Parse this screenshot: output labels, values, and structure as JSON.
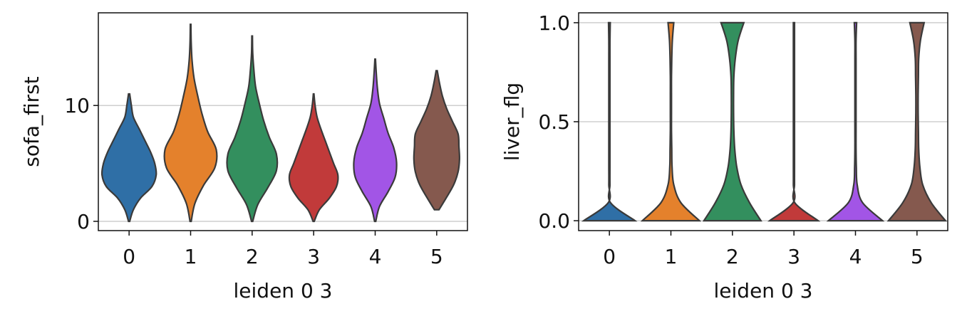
{
  "chart_data": [
    {
      "type": "violin",
      "xlabel": "leiden 0 3",
      "ylabel": "sofa_first",
      "categories": [
        "0",
        "1",
        "2",
        "3",
        "4",
        "5"
      ],
      "ylim": [
        -0.8,
        18
      ],
      "yticks": [
        0,
        10
      ],
      "grid": true,
      "violins": [
        {
          "color": "#2f6fa6",
          "min": 0,
          "max": 11,
          "profile": [
            0.02,
            0.15,
            0.4,
            0.8,
            0.95,
            0.9,
            0.75,
            0.55,
            0.35,
            0.15,
            0.08,
            0.02
          ]
        },
        {
          "color": "#e4812c",
          "min": 0,
          "max": 17,
          "profile": [
            0.02,
            0.15,
            0.45,
            0.85,
            0.9,
            0.6,
            0.4,
            0.25,
            0.12,
            0.05,
            0.02,
            0.01
          ]
        },
        {
          "color": "#338f5e",
          "min": 0,
          "max": 16,
          "profile": [
            0.02,
            0.2,
            0.55,
            0.85,
            0.85,
            0.6,
            0.4,
            0.25,
            0.12,
            0.06,
            0.02,
            0.01
          ]
        },
        {
          "color": "#c13a3a",
          "min": 0,
          "max": 11,
          "profile": [
            0.02,
            0.2,
            0.55,
            0.8,
            0.85,
            0.7,
            0.55,
            0.4,
            0.25,
            0.12,
            0.05,
            0.01
          ]
        },
        {
          "color": "#a255e6",
          "min": 0,
          "max": 14,
          "profile": [
            0.02,
            0.15,
            0.45,
            0.7,
            0.75,
            0.65,
            0.45,
            0.3,
            0.15,
            0.08,
            0.04,
            0.01
          ]
        },
        {
          "color": "#85594e",
          "min": 1,
          "max": 13,
          "profile": [
            0.08,
            0.35,
            0.6,
            0.75,
            0.8,
            0.78,
            0.75,
            0.55,
            0.35,
            0.2,
            0.1,
            0.02
          ]
        }
      ]
    },
    {
      "type": "violin",
      "xlabel": "leiden 0 3",
      "ylabel": "liver_flg",
      "categories": [
        "0",
        "1",
        "2",
        "3",
        "4",
        "5"
      ],
      "ylim": [
        -0.05,
        1.05
      ],
      "yticks": [
        {
          "value": 0,
          "label": "0.0"
        },
        0.5,
        {
          "value": 1,
          "label": "1.0"
        }
      ],
      "grid": true,
      "violins": [
        {
          "color": "#2f6fa6",
          "min": 0,
          "max": 1,
          "profile": [
            0.9,
            0.04,
            0.02,
            0.02,
            0.02,
            0.02,
            0.02,
            0.02,
            0.02,
            0.02,
            0.02,
            0.03
          ]
        },
        {
          "color": "#e4812c",
          "min": 0,
          "max": 1,
          "profile": [
            1.0,
            0.35,
            0.1,
            0.04,
            0.03,
            0.02,
            0.02,
            0.02,
            0.02,
            0.03,
            0.05,
            0.1
          ]
        },
        {
          "color": "#338f5e",
          "min": 0,
          "max": 1,
          "profile": [
            1.0,
            0.6,
            0.3,
            0.15,
            0.08,
            0.05,
            0.04,
            0.04,
            0.05,
            0.1,
            0.2,
            0.4
          ]
        },
        {
          "color": "#c13a3a",
          "min": 0,
          "max": 1,
          "profile": [
            0.85,
            0.03,
            0.02,
            0.02,
            0.02,
            0.02,
            0.02,
            0.02,
            0.02,
            0.02,
            0.02,
            0.02
          ]
        },
        {
          "color": "#a255e6",
          "min": 0,
          "max": 1,
          "profile": [
            0.95,
            0.25,
            0.06,
            0.03,
            0.02,
            0.02,
            0.02,
            0.02,
            0.02,
            0.02,
            0.02,
            0.04
          ]
        },
        {
          "color": "#85594e",
          "min": 0,
          "max": 1,
          "profile": [
            1.0,
            0.5,
            0.2,
            0.1,
            0.06,
            0.05,
            0.04,
            0.04,
            0.05,
            0.06,
            0.12,
            0.25
          ]
        }
      ]
    }
  ]
}
